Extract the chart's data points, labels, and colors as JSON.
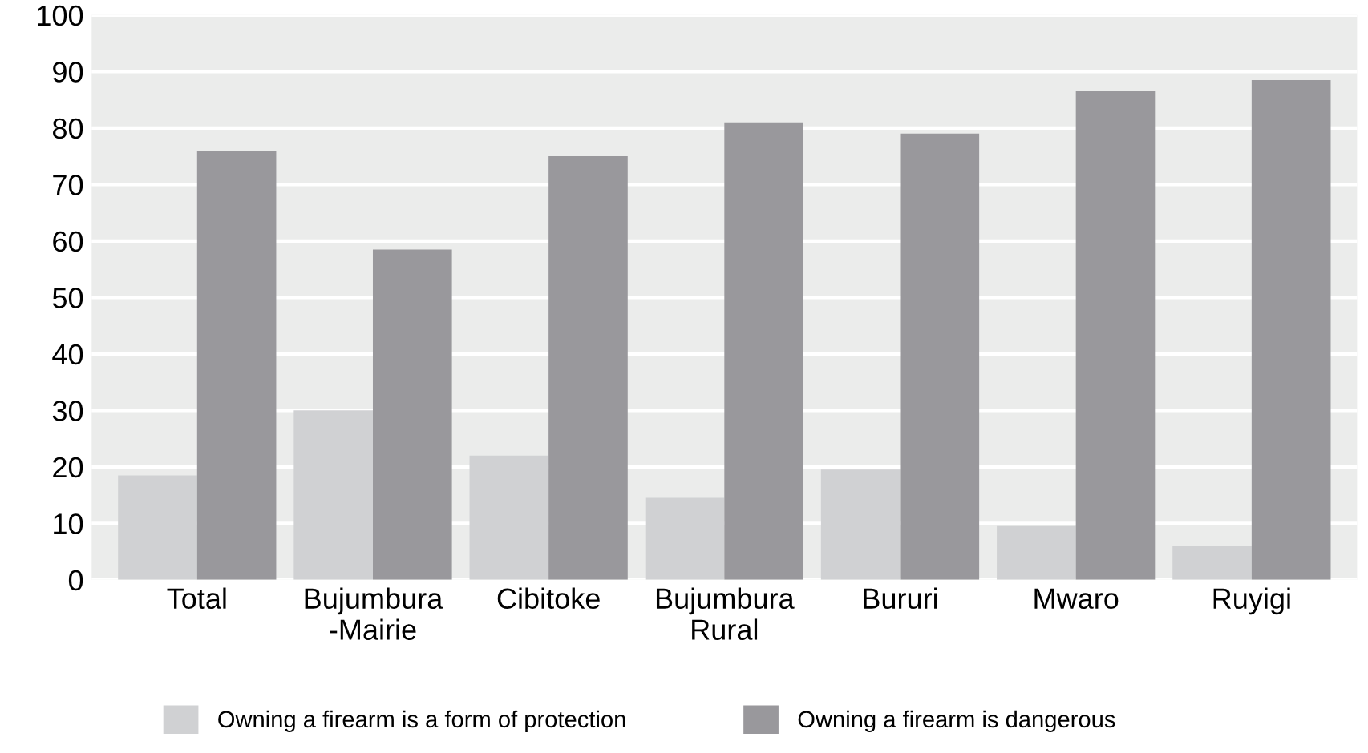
{
  "chart_data": {
    "type": "bar",
    "categories": [
      "Total",
      "Bujumbura\n-Mairie",
      "Cibitoke",
      "Bujumbura\nRural",
      "Bururi",
      "Mwaro",
      "Ruyigi"
    ],
    "series": [
      {
        "name": "Owning a firearm is a form of protection",
        "color": "#d0d1d3",
        "values": [
          18.5,
          30,
          22,
          14.5,
          19.5,
          9.5,
          6
        ]
      },
      {
        "name": "Owning a firearm is dangerous",
        "color": "#99989c",
        "values": [
          76,
          58.5,
          75,
          81,
          79,
          86.5,
          88.5
        ]
      }
    ],
    "ylim": [
      0,
      100
    ],
    "yticks": [
      0,
      10,
      20,
      30,
      40,
      50,
      60,
      70,
      80,
      90,
      100
    ],
    "grid": "y",
    "legend": "bottom"
  }
}
